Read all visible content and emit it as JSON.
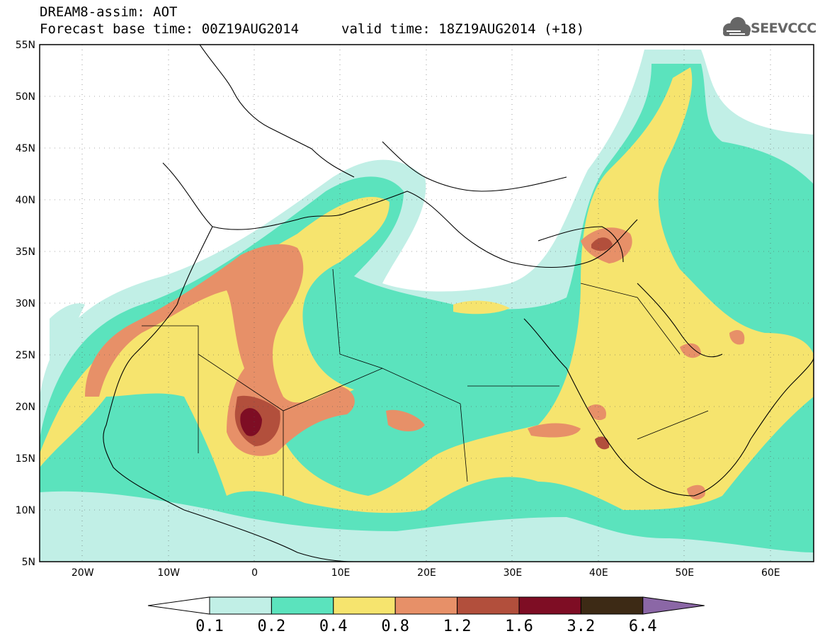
{
  "header": {
    "title": "DREAM8-assim: AOT",
    "base_time": "Forecast base time: 00Z19AUG2014",
    "valid_time": "valid time: 18Z19AUG2014 (+18)"
  },
  "logo": {
    "text": "SEEVCCC",
    "icon": "cloud-logo-icon"
  },
  "map": {
    "variable": "Aerosol optical thickness",
    "lon_range": [
      -25,
      65
    ],
    "lat_range": [
      5,
      55
    ],
    "lon_ticks": [
      "20W",
      "10W",
      "0",
      "10E",
      "20E",
      "30E",
      "40E",
      "50E",
      "60E"
    ],
    "lat_ticks": [
      "55N",
      "50N",
      "45N",
      "40N",
      "35N",
      "30N",
      "25N",
      "20N",
      "15N",
      "10N",
      "5N"
    ],
    "grid": "dotted"
  },
  "colorbar": {
    "levels": [
      "0.1",
      "0.2",
      "0.4",
      "0.8",
      "1.2",
      "1.6",
      "3.2",
      "6.4"
    ],
    "colors": [
      "#ffffff",
      "#c1efe6",
      "#5be3bd",
      "#f6e46e",
      "#e79068",
      "#b24f3c",
      "#7e0d24",
      "#3d2a15",
      "#8b67a6"
    ]
  },
  "colors": {
    "c1": "#c1efe6",
    "c2": "#5be3bd",
    "c3": "#f6e46e",
    "c4": "#e79068",
    "c5": "#b24f3c",
    "c6": "#7e0d24",
    "c7": "#3d2a15",
    "c8": "#8b67a6"
  }
}
